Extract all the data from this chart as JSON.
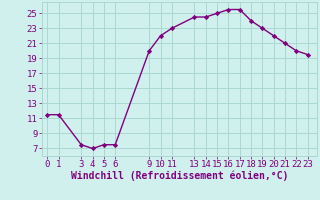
{
  "x_values": [
    0,
    1,
    3,
    4,
    5,
    6,
    9,
    10,
    11,
    13,
    14,
    15,
    16,
    17,
    18,
    19,
    20,
    21,
    22,
    23
  ],
  "y_values": [
    11.5,
    11.5,
    7.5,
    7.0,
    7.5,
    7.5,
    20.0,
    22.0,
    23.0,
    24.5,
    24.5,
    25.0,
    25.5,
    25.5,
    24.0,
    23.0,
    22.0,
    21.0,
    20.0,
    19.5
  ],
  "x_ticks": [
    0,
    1,
    3,
    4,
    5,
    6,
    9,
    10,
    11,
    13,
    14,
    15,
    16,
    17,
    18,
    19,
    20,
    21,
    22,
    23
  ],
  "y_ticks": [
    7,
    9,
    11,
    13,
    15,
    17,
    19,
    21,
    23,
    25
  ],
  "ylim": [
    6.0,
    26.5
  ],
  "xlim": [
    -0.5,
    23.8
  ],
  "line_color": "#800080",
  "marker": "D",
  "marker_size": 2.2,
  "bg_color": "#cff0ec",
  "grid_color": "#aad8d2",
  "xlabel": "Windchill (Refroidissement éolien,°C)",
  "xlabel_fontsize": 7,
  "tick_fontsize": 6.5,
  "line_width": 1.0
}
